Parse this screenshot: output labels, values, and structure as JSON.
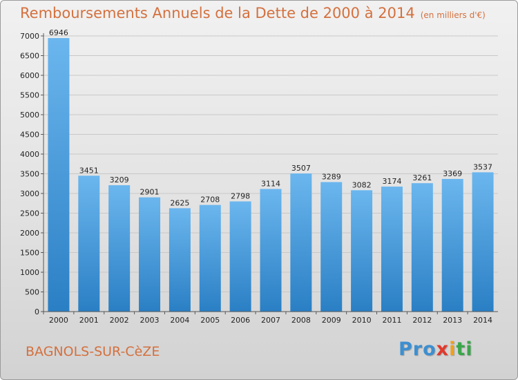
{
  "header": {
    "title": "Remboursements Annuels de la Dette de 2000 à 2014",
    "unit": "(en milliers d'€)"
  },
  "footer": {
    "city": "BAGNOLS-SUR-CèZE",
    "logo": [
      "Pro",
      "x",
      "i",
      "ti"
    ]
  },
  "colors": {
    "bar_light": "#6bb6ee",
    "bar_dark": "#2a7fc4",
    "title": "#d4703d",
    "grid": "#c8c8c8",
    "axis_text": "#222222"
  },
  "chart_data": {
    "type": "bar",
    "title": "Remboursements Annuels de la Dette de 2000 à 2014",
    "xlabel": "",
    "ylabel": "",
    "categories": [
      "2000",
      "2001",
      "2002",
      "2003",
      "2004",
      "2005",
      "2006",
      "2007",
      "2008",
      "2009",
      "2010",
      "2011",
      "2012",
      "2013",
      "2014"
    ],
    "values": [
      6946,
      3451,
      3209,
      2901,
      2625,
      2708,
      2798,
      3114,
      3507,
      3289,
      3082,
      3174,
      3261,
      3369,
      3537
    ],
    "ylim": [
      0,
      7000
    ],
    "yticks": [
      0,
      500,
      1000,
      1500,
      2000,
      2500,
      3000,
      3500,
      4000,
      4500,
      5000,
      5500,
      6000,
      6500,
      7000
    ],
    "grid": true,
    "data_labels": true
  }
}
